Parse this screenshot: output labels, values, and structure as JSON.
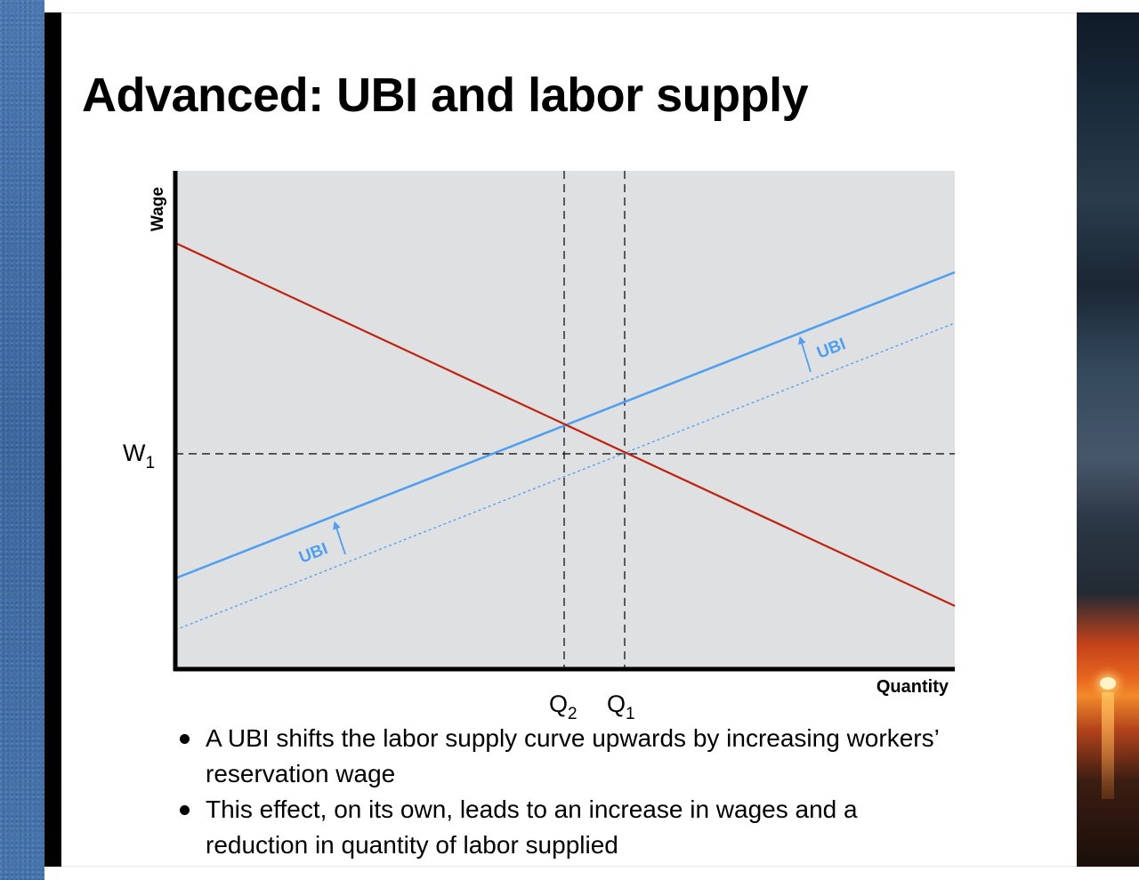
{
  "slide": {
    "title": "Advanced: UBI and labor supply"
  },
  "diagram": {
    "y_axis_label": "Wage",
    "x_axis_label": "Quantity",
    "wage_label": "W",
    "wage_subscript": "1",
    "q2_label": "Q",
    "q2_subscript": "2",
    "q1_label": "Q",
    "q1_subscript": "1",
    "shift_label_left": "UBI",
    "shift_label_right": "UBI",
    "colors": {
      "demand": "#c0220f",
      "supply": "#4f9ff0",
      "plot_background": "#dfe0e2",
      "axes": "#000000",
      "guides": "#000000"
    }
  },
  "bullets": [
    "A UBI shifts the labor supply curve upwards by increasing workers’ reservation wage",
    "This effect, on its own, leads to an increase in wages and a reduction in quantity of labor supplied"
  ]
}
